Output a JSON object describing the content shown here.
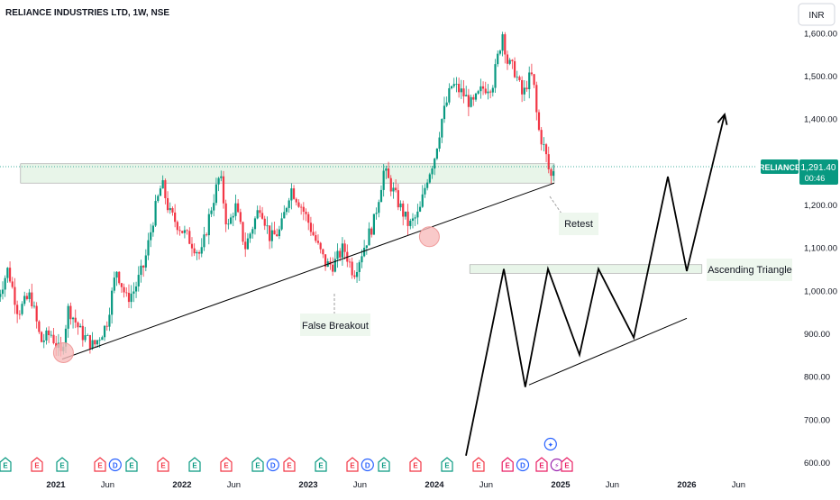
{
  "symbol_title": "RELIANCE INDUSTRIES LTD, 1W, NSE",
  "currency": "INR",
  "price_tag": {
    "symbol": "RELIANCE",
    "price": "1,291.40",
    "countdown": "00:46"
  },
  "annotations": {
    "retest": "Retest",
    "false_breakout": "False Breakout",
    "ascending_triangle": "Ascending Triangle"
  },
  "colors": {
    "up": "#089981",
    "down": "#f23645",
    "tag": "#089981",
    "zone_fill": "#e8f5e9",
    "zone_border": "#9e9e9e",
    "circle_fill": "#f8bbbb",
    "circle_border": "#ef9a9a"
  },
  "chart_data": {
    "type": "candlestick",
    "x_ticks": [
      "2021",
      "Jun",
      "2022",
      "Jun",
      "2023",
      "Jun",
      "2024",
      "Jun",
      "2025",
      "Jun",
      "2026",
      "Jun"
    ],
    "y_ticks": [
      "600.00",
      "700.00",
      "800.00",
      "900.00",
      "1,000.00",
      "1,100.00",
      "1,200.00",
      "1,300.00",
      "1,400.00",
      "1,500.00",
      "1,600.00"
    ],
    "ylim": [
      585,
      1640
    ],
    "last_price": 1291.4,
    "resistance_zone": [
      1250,
      1295
    ],
    "triangle_zone": [
      1040,
      1060
    ],
    "support_line": [
      [
        2021.05,
        840
      ],
      [
        2024.95,
        1250
      ]
    ],
    "triangle_support_line": [
      [
        2024.75,
        780
      ],
      [
        2026.0,
        935
      ]
    ],
    "projection_path": [
      [
        2024.25,
        615
      ],
      [
        2024.55,
        1050
      ],
      [
        2024.72,
        775
      ],
      [
        2024.9,
        1050
      ],
      [
        2025.15,
        850
      ],
      [
        2025.3,
        1050
      ],
      [
        2025.58,
        890
      ],
      [
        2025.85,
        1265
      ],
      [
        2026.0,
        1045
      ],
      [
        2026.3,
        1410
      ]
    ],
    "events": [
      {
        "label": "E",
        "x": 2020.6
      },
      {
        "label": "E",
        "x": 2020.85
      },
      {
        "label": "E",
        "x": 2021.05
      },
      {
        "label": "E",
        "x": 2021.35
      },
      {
        "label": "D",
        "x": 2021.47
      },
      {
        "label": "E",
        "x": 2021.6
      },
      {
        "label": "E",
        "x": 2021.85
      },
      {
        "label": "E",
        "x": 2022.1
      },
      {
        "label": "E",
        "x": 2022.35
      },
      {
        "label": "E",
        "x": 2022.6
      },
      {
        "label": "D",
        "x": 2022.72
      },
      {
        "label": "E",
        "x": 2022.85
      },
      {
        "label": "E",
        "x": 2023.1
      },
      {
        "label": "E",
        "x": 2023.35
      },
      {
        "label": "D",
        "x": 2023.47
      },
      {
        "label": "E",
        "x": 2023.6
      },
      {
        "label": "E",
        "x": 2023.85
      },
      {
        "label": "E",
        "x": 2024.1
      },
      {
        "label": "E",
        "x": 2024.35
      },
      {
        "label": "E",
        "x": 2024.58
      },
      {
        "label": "D",
        "x": 2024.7
      },
      {
        "label": "E",
        "x": 2024.85
      },
      {
        "label": "⚡",
        "x": 2024.97
      },
      {
        "label": "E",
        "x": 2025.05
      }
    ],
    "split_event": {
      "label": "✦",
      "x": 2024.92
    },
    "price_path": [
      [
        2020.54,
        985
      ],
      [
        2020.62,
        1050
      ],
      [
        2020.7,
        950
      ],
      [
        2020.8,
        990
      ],
      [
        2020.88,
        880
      ],
      [
        2020.96,
        900
      ],
      [
        2021.04,
        850
      ],
      [
        2021.1,
        960
      ],
      [
        2021.2,
        900
      ],
      [
        2021.3,
        870
      ],
      [
        2021.4,
        920
      ],
      [
        2021.48,
        1050
      ],
      [
        2021.56,
        980
      ],
      [
        2021.62,
        1000
      ],
      [
        2021.7,
        1060
      ],
      [
        2021.78,
        1180
      ],
      [
        2021.84,
        1250
      ],
      [
        2021.9,
        1180
      ],
      [
        2022.0,
        1140
      ],
      [
        2022.08,
        1110
      ],
      [
        2022.15,
        1080
      ],
      [
        2022.22,
        1180
      ],
      [
        2022.3,
        1270
      ],
      [
        2022.36,
        1140
      ],
      [
        2022.42,
        1200
      ],
      [
        2022.5,
        1100
      ],
      [
        2022.56,
        1150
      ],
      [
        2022.62,
        1200
      ],
      [
        2022.7,
        1120
      ],
      [
        2022.78,
        1140
      ],
      [
        2022.86,
        1240
      ],
      [
        2022.94,
        1200
      ],
      [
        2023.0,
        1160
      ],
      [
        2023.08,
        1100
      ],
      [
        2023.14,
        1060
      ],
      [
        2023.2,
        1060
      ],
      [
        2023.28,
        1100
      ],
      [
        2023.36,
        1040
      ],
      [
        2023.44,
        1100
      ],
      [
        2023.52,
        1160
      ],
      [
        2023.6,
        1280
      ],
      [
        2023.66,
        1240
      ],
      [
        2023.72,
        1200
      ],
      [
        2023.8,
        1150
      ],
      [
        2023.88,
        1180
      ],
      [
        2023.94,
        1260
      ],
      [
        2024.0,
        1310
      ],
      [
        2024.06,
        1400
      ],
      [
        2024.14,
        1480
      ],
      [
        2024.22,
        1460
      ],
      [
        2024.3,
        1430
      ],
      [
        2024.38,
        1470
      ],
      [
        2024.46,
        1480
      ],
      [
        2024.5,
        1540
      ],
      [
        2024.54,
        1600
      ],
      [
        2024.58,
        1530
      ],
      [
        2024.64,
        1510
      ],
      [
        2024.7,
        1450
      ],
      [
        2024.74,
        1490
      ],
      [
        2024.78,
        1500
      ],
      [
        2024.82,
        1380
      ],
      [
        2024.88,
        1320
      ],
      [
        2024.92,
        1260
      ],
      [
        2024.95,
        1291
      ]
    ]
  }
}
